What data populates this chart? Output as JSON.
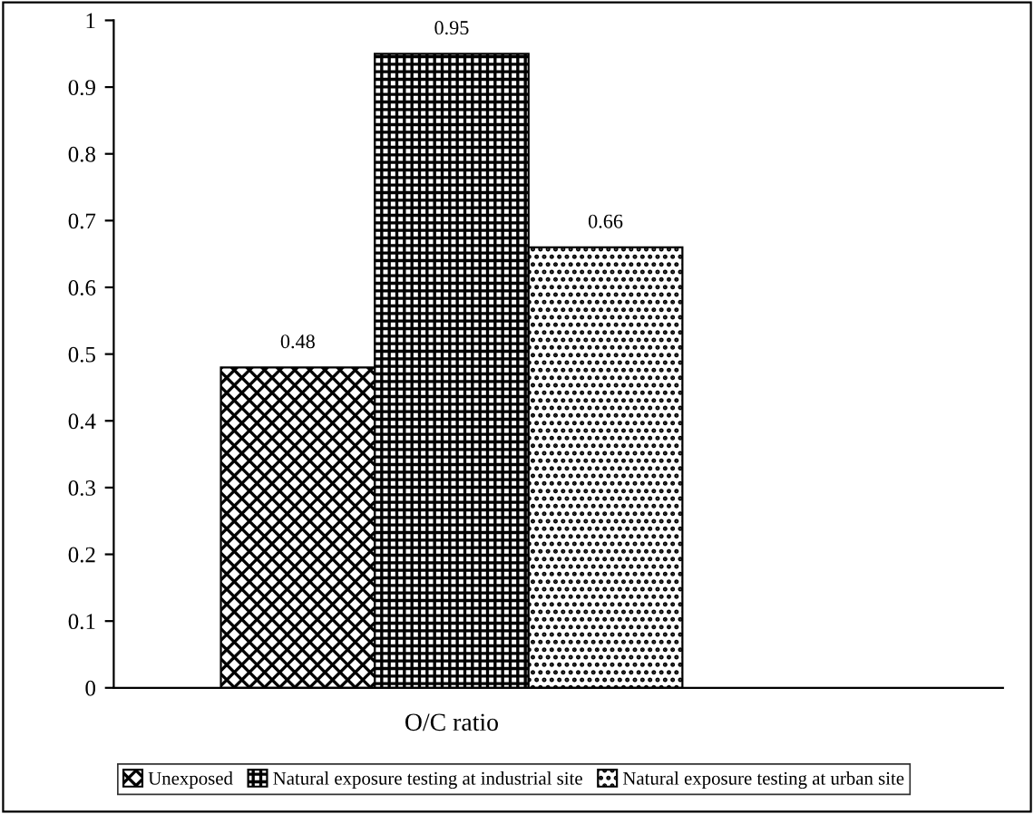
{
  "chart_data": {
    "type": "bar",
    "categories": [
      "O/C ratio"
    ],
    "series": [
      {
        "name": "Unexposed",
        "color": "#000000",
        "values": [
          0.48
        ]
      },
      {
        "name": "Natural exposure testing at industrial site",
        "color": "#000000",
        "values": [
          0.95
        ]
      },
      {
        "name": "Natural exposure testing at urban site",
        "color": "#000000",
        "values": [
          0.66
        ]
      }
    ],
    "ylim": [
      0,
      1
    ],
    "yticks": [
      0,
      0.1,
      0.2,
      0.3,
      0.4,
      0.5,
      0.6,
      0.7,
      0.8,
      0.9,
      1
    ],
    "data_labels": true,
    "grid": false,
    "legend": "bottom"
  }
}
